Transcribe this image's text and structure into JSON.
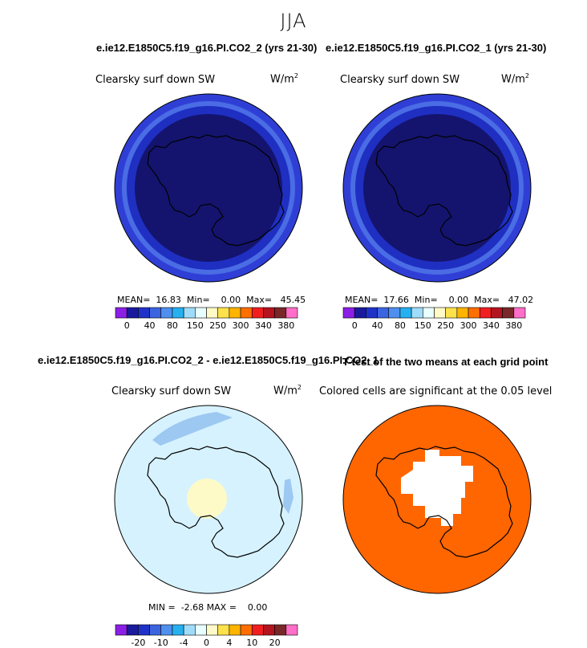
{
  "season": "JJA",
  "panels": [
    {
      "title": "e.ie12.E1850C5.f19_g16.PI.CO2_2 (yrs 21-30)",
      "variable": "Clearsky surf down SW",
      "units": "W/m",
      "units_sup": "2",
      "stats": {
        "mean_label": "MEAN=",
        "mean": "16.83",
        "min_label": "Min=",
        "min": "0.00",
        "max_label": "Max=",
        "max": "45.45"
      }
    },
    {
      "title": "e.ie12.E1850C5.f19_g16.PI.CO2_1 (yrs 21-30)",
      "variable": "Clearsky surf down SW",
      "units": "W/m",
      "units_sup": "2",
      "stats": {
        "mean_label": "MEAN=",
        "mean": "17.66",
        "min_label": "Min=",
        "min": "0.00",
        "max_label": "Max=",
        "max": "47.02"
      }
    },
    {
      "title": "e.ie12.E1850C5.f19_g16.PI.CO2_2 - e.ie12.E1850C5.f19_g16.PI.CO2_1",
      "variable": "Clearsky surf down SW",
      "units": "W/m",
      "units_sup": "2",
      "stats": {
        "min_label": "MIN =",
        "min": "-2.68",
        "max_label": "MAX =",
        "max": "0.00"
      }
    },
    {
      "title": "T-test of the two means at each grid point",
      "variable": "Colored cells are significant at the 0.05 level"
    }
  ],
  "chart_data": [
    {
      "type": "heatmap",
      "title": "e.ie12.E1850C5.f19_g16.PI.CO2_2 (yrs 21-30)",
      "variable": "Clearsky surf down SW",
      "units": "W/m2",
      "projection": "south polar stereographic",
      "colorbar_levels": [
        "0",
        "40",
        "80",
        "150",
        "250",
        "300",
        "340",
        "380"
      ],
      "colorbar_colors": [
        "#8c1fe6",
        "#1a1a9c",
        "#1f32c8",
        "#3c64e0",
        "#4f8fee",
        "#26b0f0",
        "#9fdcfa",
        "#e8ffff",
        "#fffac8",
        "#ffe14b",
        "#ffb400",
        "#ff6e00",
        "#f01e1e",
        "#b4141e",
        "#782828",
        "#ff6ec8"
      ],
      "mean": 16.83,
      "min": 0.0,
      "max": 45.45
    },
    {
      "type": "heatmap",
      "title": "e.ie12.E1850C5.f19_g16.PI.CO2_1 (yrs 21-30)",
      "variable": "Clearsky surf down SW",
      "units": "W/m2",
      "projection": "south polar stereographic",
      "colorbar_levels": [
        "0",
        "40",
        "80",
        "150",
        "250",
        "300",
        "340",
        "380"
      ],
      "mean": 17.66,
      "min": 0.0,
      "max": 47.02
    },
    {
      "type": "heatmap",
      "title": "e.ie12.E1850C5.f19_g16.PI.CO2_2 - e.ie12.E1850C5.f19_g16.PI.CO2_1",
      "variable": "Clearsky surf down SW",
      "units": "W/m2",
      "projection": "south polar stereographic",
      "colorbar_levels": [
        "-20",
        "-10",
        "-4",
        "0",
        "4",
        "10",
        "20"
      ],
      "min": -2.68,
      "max": 0.0
    },
    {
      "type": "heatmap",
      "title": "T-test of the two means at each grid point",
      "projection": "south polar stereographic",
      "significance_level": 0.05
    }
  ],
  "colors": {
    "ring_outer": "#2f3fd6",
    "ring_mid": "#4a6ce4",
    "ring_inner": "#1f2fc2",
    "core": "#14146e",
    "diff_bg": "#d6f2ff",
    "diff_low": "#9cc8f2",
    "diff_pos": "#fdfac8",
    "ttest_fill": "#ff6600"
  }
}
